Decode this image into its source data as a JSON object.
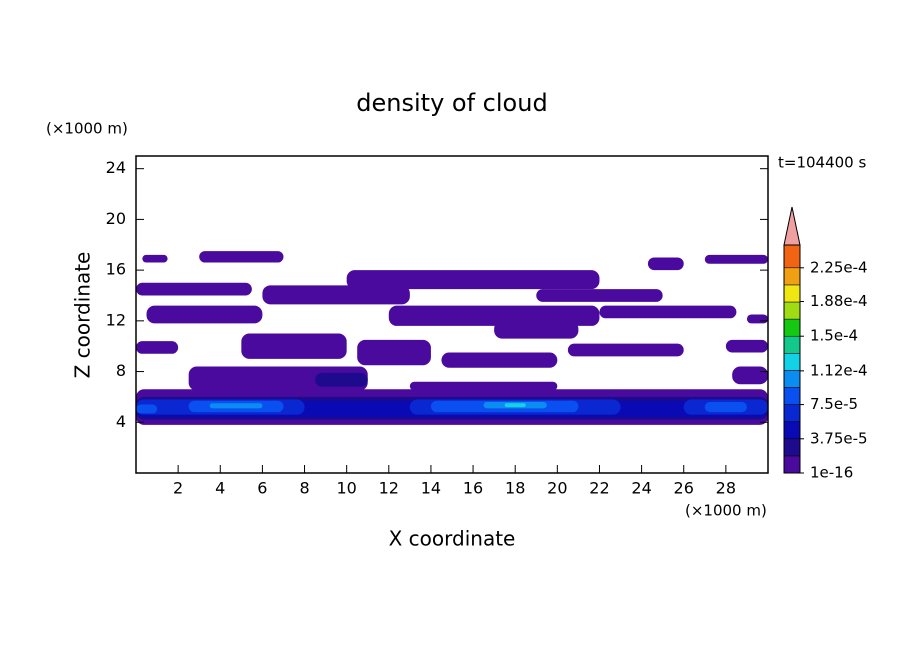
{
  "chart_data": {
    "type": "contour",
    "title": "density of cloud",
    "x_label": "X coordinate",
    "y_label": "Z coordinate",
    "x_unit": "(×1000 m)",
    "y_unit": "(×1000 m)",
    "time_label": "t=104400 s",
    "xlim": [
      0,
      30
    ],
    "xticks": [
      2,
      4,
      6,
      8,
      10,
      12,
      14,
      16,
      18,
      20,
      22,
      24,
      26,
      28
    ],
    "ylim": [
      0,
      25
    ],
    "yticks": [
      4,
      8,
      12,
      16,
      20,
      24
    ],
    "colorbar": {
      "clim": [
        1e-16,
        0.00025
      ],
      "levels": [
        1e-16,
        1.875e-05,
        3.75e-05,
        5.625e-05,
        7.5e-05,
        9.375e-05,
        0.0001125,
        0.00013125,
        0.00015,
        0.00016875,
        0.0001875,
        0.00020625,
        0.000225
      ],
      "colors": [
        "#4a0a9e",
        "#1e0a8c",
        "#0a0ab4",
        "#0a28d2",
        "#0a50f0",
        "#0a8cf0",
        "#14d2e6",
        "#14c88c",
        "#14c814",
        "#a0dc14",
        "#f0e614",
        "#f0a014",
        "#f06414"
      ],
      "extend_color": "#f0a0a0",
      "ticks": [
        {
          "value": 1e-16,
          "label": "1e-16"
        },
        {
          "value": 3.75e-05,
          "label": "3.75e-5"
        },
        {
          "value": 7.5e-05,
          "label": "7.5e-5"
        },
        {
          "value": 0.000112,
          "label": "1.12e-4"
        },
        {
          "value": 0.00015,
          "label": "1.5e-4"
        },
        {
          "value": 0.000188,
          "label": "1.88e-4"
        },
        {
          "value": 0.000225,
          "label": "2.25e-4"
        }
      ]
    },
    "regions": [
      [
        0,
        30,
        3.8,
        6.6,
        0
      ],
      [
        0,
        30,
        4.2,
        6.0,
        1
      ],
      [
        0,
        30,
        4.4,
        5.7,
        2
      ],
      [
        0,
        8,
        4.6,
        5.8,
        3
      ],
      [
        13,
        23,
        4.6,
        5.8,
        3
      ],
      [
        26,
        30,
        4.6,
        5.8,
        3
      ],
      [
        2.5,
        7,
        4.8,
        5.7,
        4
      ],
      [
        14,
        21,
        4.8,
        5.7,
        4
      ],
      [
        0,
        1,
        4.7,
        5.4,
        4
      ],
      [
        27,
        29,
        4.8,
        5.6,
        4
      ],
      [
        3.5,
        6,
        5.1,
        5.5,
        5
      ],
      [
        16.5,
        19.5,
        5.1,
        5.6,
        5
      ],
      [
        17.5,
        18.5,
        5.2,
        5.5,
        6
      ],
      [
        2.5,
        11,
        6.5,
        8.4,
        0
      ],
      [
        8.5,
        11,
        6.8,
        7.9,
        1
      ],
      [
        13,
        20,
        6.5,
        7.2,
        0
      ],
      [
        28.3,
        30,
        7.0,
        8.4,
        0
      ],
      [
        0,
        2,
        9.4,
        10.4,
        0
      ],
      [
        5,
        10,
        9.0,
        11.0,
        0
      ],
      [
        10.5,
        14,
        8.5,
        10.5,
        0
      ],
      [
        14.5,
        20,
        8.3,
        9.5,
        0
      ],
      [
        20.5,
        26,
        9.2,
        10.2,
        0
      ],
      [
        28,
        30,
        9.5,
        10.5,
        0
      ],
      [
        0.5,
        6,
        11.8,
        13.2,
        0
      ],
      [
        12,
        22,
        11.6,
        13.2,
        0
      ],
      [
        17,
        21,
        10.6,
        12.0,
        0
      ],
      [
        22,
        28.5,
        12.2,
        13.2,
        0
      ],
      [
        29,
        30,
        11.8,
        12.5,
        0
      ],
      [
        6,
        13,
        13.3,
        14.8,
        0
      ],
      [
        0,
        5.5,
        14.0,
        15.0,
        0
      ],
      [
        19,
        25,
        13.5,
        14.5,
        0
      ],
      [
        10,
        22,
        14.5,
        16.0,
        0
      ],
      [
        0.3,
        1.5,
        16.6,
        17.2,
        0
      ],
      [
        3,
        7,
        16.6,
        17.5,
        0
      ],
      [
        24.3,
        26,
        16.0,
        17.0,
        0
      ],
      [
        27,
        30,
        16.5,
        17.2,
        0
      ]
    ]
  }
}
